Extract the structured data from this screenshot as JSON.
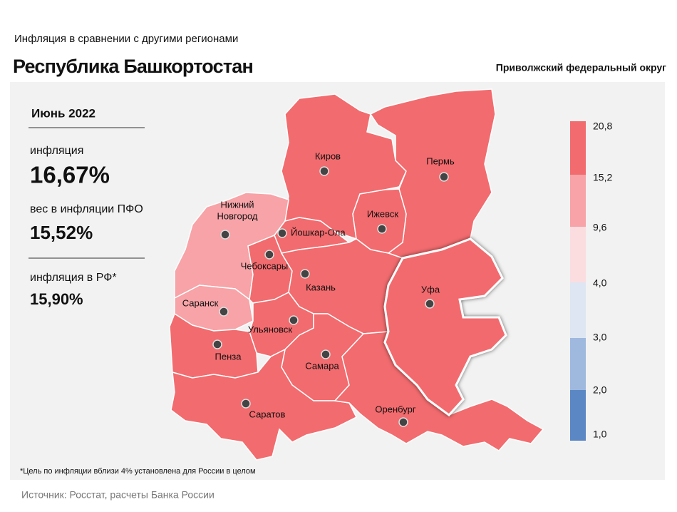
{
  "header": {
    "subtitle": "Инфляция в сравнении с другими регионами",
    "title": "Республика Башкортостан",
    "district": "Приволжский федеральный округ"
  },
  "panel": {
    "period": "Июнь 2022",
    "items": [
      {
        "label": "инфляция",
        "value": "16,67%"
      },
      {
        "label": "вес в инфляции ПФО",
        "value": "15,52%"
      },
      {
        "label": "инфляция в РФ*",
        "value": "15,90%"
      }
    ]
  },
  "map": {
    "cities": [
      {
        "name": "Киров",
        "color": "#f26b6e"
      },
      {
        "name": "Пермь",
        "color": "#f26b6e"
      },
      {
        "name": [
          "Нижний",
          "Новгород"
        ],
        "color": "#f7a3a7"
      },
      {
        "name": "Ижевск",
        "color": "#f26b6e"
      },
      {
        "name": "Йошкар-Ола",
        "color": "#f26b6e"
      },
      {
        "name": "Чебоксары",
        "color": "#f26b6e"
      },
      {
        "name": "Казань",
        "color": "#f26b6e"
      },
      {
        "name": "Уфа",
        "color": "#f26b6e"
      },
      {
        "name": "Саранск",
        "color": "#f7a3a7"
      },
      {
        "name": "Ульяновск",
        "color": "#f26b6e"
      },
      {
        "name": "Пенза",
        "color": "#f26b6e"
      },
      {
        "name": "Самара",
        "color": "#f26b6e"
      },
      {
        "name": "Саратов",
        "color": "#f26b6e"
      },
      {
        "name": "Оренбург",
        "color": "#f26b6e"
      }
    ],
    "legend": {
      "labels": [
        "20,8",
        "15,2",
        "9,6",
        "4,0",
        "3,0",
        "2,0",
        "1,0"
      ],
      "colors": [
        "#f26b6e",
        "#f7a3a7",
        "#fbdde0",
        "#dde6f2",
        "#9fb8de",
        "#5b87c5"
      ]
    }
  },
  "footnote": "*Цель по инфляции вблизи 4% установлена для России в целом",
  "source": "Источник: Росстат, расчеты Банка России"
}
